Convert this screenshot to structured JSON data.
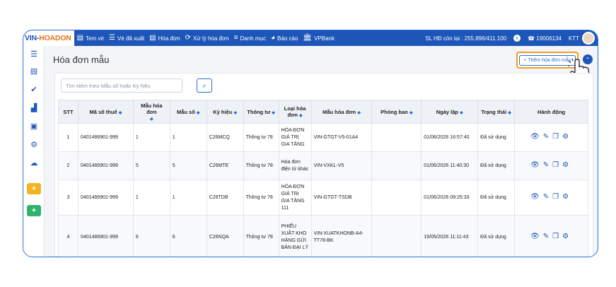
{
  "topbar": {
    "logo_part1": "VIN-",
    "logo_part2": "HOADON",
    "nav": [
      {
        "label": "Tem vé",
        "icon": "document-icon"
      },
      {
        "label": "Vé đã xuất",
        "icon": "list-icon"
      },
      {
        "label": "Hóa đơn",
        "icon": "document-icon"
      },
      {
        "label": "Xử lý hóa đơn",
        "icon": "refresh-icon"
      },
      {
        "label": "Danh mục",
        "icon": "menu-icon"
      },
      {
        "label": "Báo cáo",
        "icon": "pie-chart-icon"
      },
      {
        "label": "VPBank",
        "icon": "bank-icon"
      }
    ],
    "invoice_quota": "SL HĐ còn lại : 255.896/411.100",
    "phone": "19006134",
    "user": "KTT"
  },
  "page": {
    "title": "Hóa đơn mẫu",
    "add_button": "+ Thêm hóa đơn mẫu",
    "search_placeholder": "Tìm kiếm theo Mẫu số hoặc Ký hiệu"
  },
  "table": {
    "headers": [
      "STT",
      "Mã số thuế",
      "Mẫu hóa đơn",
      "Mẫu số",
      "Ký hiệu",
      "Thông tư",
      "Loại hóa đơn",
      "Mẫu hóa đơn",
      "Phòng ban",
      "Ngày lập",
      "Trạng thái",
      "Hành động"
    ],
    "rows": [
      {
        "stt": "1",
        "mst": "0401486901-999",
        "mau_hd": "1",
        "mau_so": "1",
        "ky_hieu": "C26MCQ",
        "thong_tu": "Thông tư 78",
        "loai": "HÓA ĐƠN GIÁ TRỊ GIA TĂNG",
        "mau_hoa_don": "VIN-GTGT-V5-01A4",
        "phong_ban": "",
        "ngay_lap": "01/06/2026 16:57:40",
        "trang_thai": "Đã sử dụng"
      },
      {
        "stt": "2",
        "mst": "0401486901-999",
        "mau_hd": "5",
        "mau_so": "5",
        "ky_hieu": "C26MTE",
        "thong_tu": "Thông tư 78",
        "loai": "Hóa đơn điện tử khác",
        "mau_hoa_don": "VIN-VXKL-V5",
        "phong_ban": "",
        "ngay_lap": "01/06/2026 11:40:30",
        "trang_thai": "Đã sử dụng"
      },
      {
        "stt": "3",
        "mst": "0401486901-999",
        "mau_hd": "1",
        "mau_so": "1",
        "ky_hieu": "C26TDB",
        "thong_tu": "Thông tư 78",
        "loai": "HÓA ĐƠN GIÁ TRỊ GIA TĂNG 111",
        "mau_hoa_don": "VIN-GTGT-TSDB",
        "phong_ban": "",
        "ngay_lap": "01/06/2026 09:25:33",
        "trang_thai": "Đã sử dụng"
      },
      {
        "stt": "4",
        "mst": "0401486901-999",
        "mau_hd": "6",
        "mau_so": "6",
        "ky_hieu": "C26NQA",
        "thong_tu": "Thông tư 78",
        "loai": "PHIẾU XUẤT KHO HÀNG GỬI BÁN ĐẠI LÝ",
        "mau_hoa_don": "VIN-XUATKHONB-A4-TT78-BK",
        "phong_ban": "",
        "ngay_lap": "19/05/2026 11:11:43",
        "trang_thai": "Đã sử dụng"
      }
    ]
  },
  "colors": {
    "primary": "#1d56b8",
    "highlight": "#f39c1d",
    "yellow_btn": "#f5b324",
    "green_btn": "#2fb36b"
  }
}
